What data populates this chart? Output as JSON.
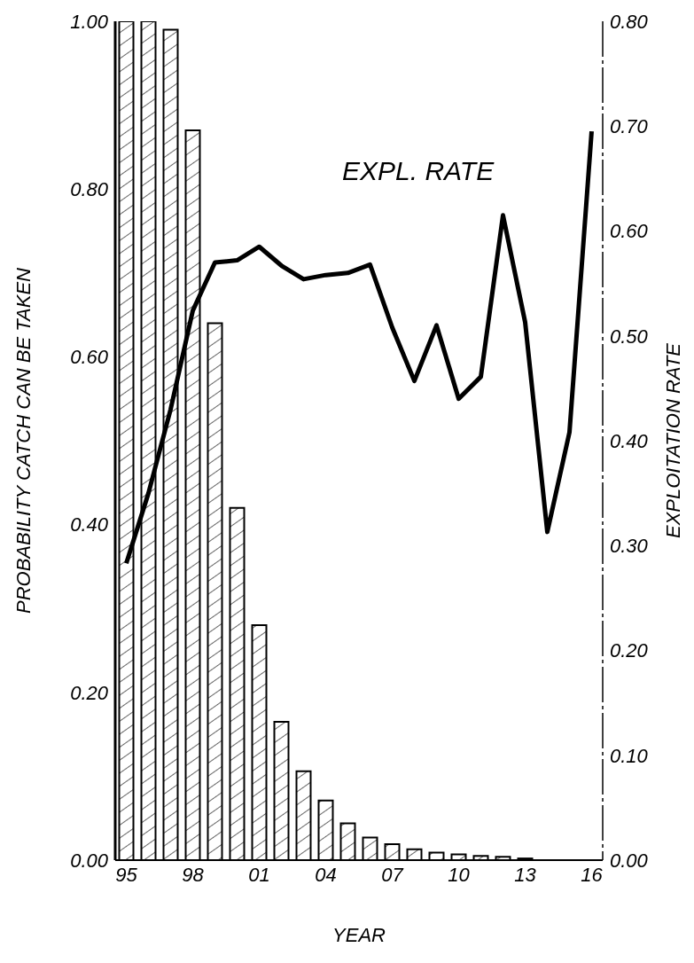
{
  "chart_data": {
    "type": "bar",
    "xlabel": "YEAR",
    "ylabel": "PROBABILITY CATCH CAN BE TAKEN",
    "y2label": "EXPLOITATION RATE",
    "categories": [
      "95",
      null,
      null,
      "98",
      null,
      null,
      "01",
      null,
      null,
      "04",
      null,
      null,
      "07",
      null,
      null,
      "10",
      null,
      null,
      "13",
      null,
      null,
      "16"
    ],
    "series": [
      {
        "color": "#000000",
        "values": [
          1.0,
          1.0,
          0.99,
          0.87,
          0.64,
          0.42,
          0.28,
          0.165,
          0.106,
          0.071,
          0.044,
          0.027,
          0.019,
          0.013,
          0.009,
          0.007,
          0.005,
          0.004,
          0.002,
          0,
          0,
          0
        ]
      },
      {
        "type": "line",
        "name": "EXPL. RATE",
        "color": "#000000",
        "axis": "y2",
        "values": [
          0.283,
          0.35,
          0.43,
          0.524,
          0.57,
          0.572,
          0.585,
          0.567,
          0.554,
          0.558,
          0.56,
          0.568,
          0.508,
          0.457,
          0.51,
          0.44,
          0.461,
          0.615,
          0.513,
          0.313,
          0.408,
          0.695
        ]
      }
    ],
    "ylim": [
      0,
      1
    ],
    "yticks": [
      {
        "value": 0,
        "label": "0.00"
      },
      {
        "value": 0.2,
        "label": "0.20"
      },
      {
        "value": 0.4,
        "label": "0.40"
      },
      {
        "value": 0.6,
        "label": "0.60"
      },
      {
        "value": 0.8,
        "label": "0.80"
      },
      {
        "value": 1,
        "label": "1.00"
      }
    ],
    "y2lim": [
      0,
      0.8
    ],
    "y2ticks": [
      {
        "value": 0,
        "label": "0.00"
      },
      {
        "value": 0.1,
        "label": "0.10"
      },
      {
        "value": 0.2,
        "label": "0.20"
      },
      {
        "value": 0.3,
        "label": "0.30"
      },
      {
        "value": 0.4,
        "label": "0.40"
      },
      {
        "value": 0.5,
        "label": "0.50"
      },
      {
        "value": 0.6,
        "label": "0.60"
      },
      {
        "value": 0.7,
        "label": "0.70"
      },
      {
        "value": 0.8,
        "label": "0.80"
      }
    ],
    "grid": false
  }
}
